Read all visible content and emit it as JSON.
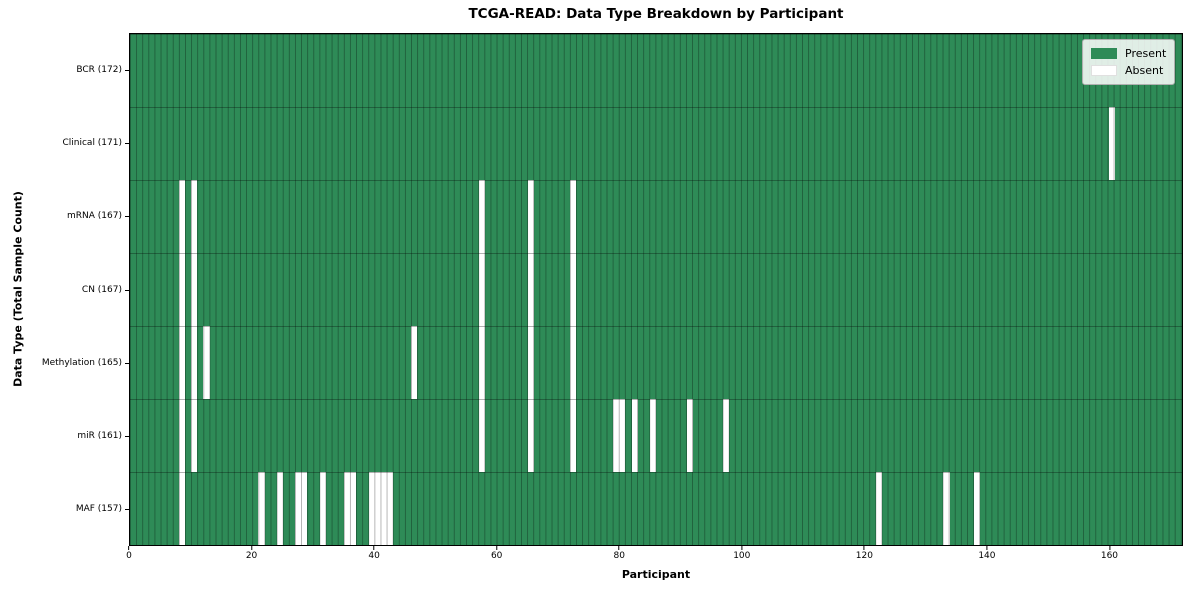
{
  "title": "TCGA-READ: Data Type Breakdown by Participant",
  "colors": {
    "present": "#2e8b57",
    "absent": "#ffffff",
    "grid": "rgba(0,0,0,0.3)",
    "legend_bg": "rgba(255,255,255,0.85)",
    "legend_border": "#b0b0b0"
  },
  "legend": {
    "present_label": "Present",
    "absent_label": "Absent"
  },
  "chart_data": {
    "type": "heatmap",
    "title": "TCGA-READ: Data Type Breakdown by Participant",
    "xlabel": "Participant",
    "ylabel": "Data Type (Total Sample Count)",
    "xlim": [
      0,
      172
    ],
    "x_ticks": [
      0,
      20,
      40,
      60,
      80,
      100,
      120,
      140,
      160
    ],
    "n_participants": 172,
    "grid": "on",
    "legend_position": "upper right",
    "legend_entries": [
      "Present",
      "Absent"
    ],
    "rows": [
      {
        "label": "BCR (172)",
        "data_type": "BCR",
        "total_sample_count": 172,
        "absent_participants": []
      },
      {
        "label": "Clinical (171)",
        "data_type": "Clinical",
        "total_sample_count": 171,
        "absent_participants": [
          160
        ]
      },
      {
        "label": "mRNA (167)",
        "data_type": "mRNA",
        "total_sample_count": 167,
        "absent_participants": [
          8,
          10,
          57,
          65,
          72
        ]
      },
      {
        "label": "CN (167)",
        "data_type": "CN",
        "total_sample_count": 167,
        "absent_participants": [
          8,
          10,
          57,
          65,
          72
        ]
      },
      {
        "label": "Methylation (165)",
        "data_type": "Methylation",
        "total_sample_count": 165,
        "absent_participants": [
          8,
          10,
          12,
          46,
          57,
          65,
          72
        ]
      },
      {
        "label": "miR (161)",
        "data_type": "miR",
        "total_sample_count": 161,
        "absent_participants": [
          8,
          10,
          57,
          65,
          72,
          79,
          80,
          82,
          85,
          91,
          97
        ]
      },
      {
        "label": "MAF (157)",
        "data_type": "MAF",
        "total_sample_count": 157,
        "absent_participants": [
          8,
          21,
          24,
          27,
          28,
          31,
          35,
          36,
          39,
          40,
          41,
          42,
          122,
          133,
          138
        ]
      }
    ]
  }
}
